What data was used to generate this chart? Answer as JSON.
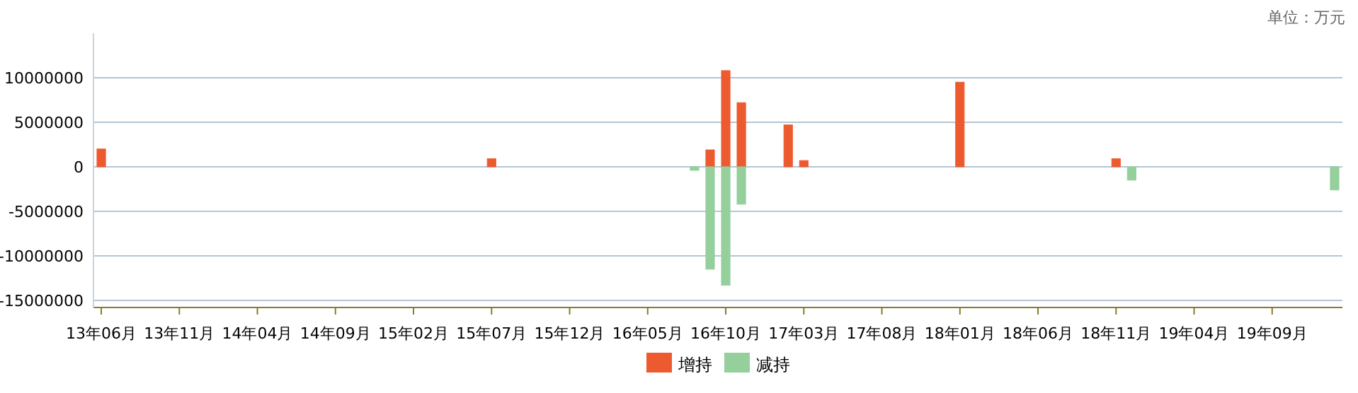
{
  "chart_data": {
    "type": "bar",
    "stacked": true,
    "grid": "y",
    "legend": "bottom",
    "annotations": [
      "单位：万元"
    ],
    "categories": [
      "13年06月",
      null,
      null,
      null,
      null,
      "13年11月",
      null,
      null,
      null,
      null,
      "14年04月",
      null,
      null,
      null,
      null,
      "14年09月",
      null,
      null,
      null,
      null,
      "15年02月",
      null,
      null,
      null,
      null,
      "15年07月",
      null,
      null,
      null,
      null,
      "15年12月",
      null,
      null,
      null,
      null,
      "16年05月",
      null,
      null,
      null,
      null,
      "16年10月",
      null,
      null,
      null,
      null,
      "17年03月",
      null,
      null,
      null,
      null,
      "17年08月",
      null,
      null,
      null,
      null,
      "18年01月",
      null,
      null,
      null,
      null,
      "18年06月",
      null,
      null,
      null,
      null,
      "18年11月",
      null,
      null,
      null,
      null,
      "19年04月",
      null,
      null,
      null,
      null,
      "19年09月",
      null,
      null,
      null,
      null
    ],
    "ylim": [
      -15800000,
      15000000
    ],
    "yticks": [
      -15000000,
      -10000000,
      -5000000,
      0,
      5000000,
      10000000
    ],
    "series": [
      {
        "name": "增持",
        "color": "#ee5a2f",
        "values": [
          2000000,
          null,
          null,
          null,
          null,
          null,
          null,
          null,
          null,
          null,
          null,
          null,
          null,
          null,
          null,
          null,
          null,
          null,
          null,
          null,
          null,
          null,
          null,
          null,
          null,
          900000,
          null,
          null,
          null,
          null,
          null,
          null,
          null,
          null,
          null,
          null,
          null,
          null,
          null,
          1900000,
          10800000,
          7200000,
          null,
          null,
          4700000,
          700000,
          null,
          null,
          null,
          null,
          null,
          null,
          null,
          null,
          null,
          9500000,
          null,
          null,
          null,
          null,
          null,
          null,
          null,
          null,
          null,
          900000,
          null,
          null,
          null,
          null,
          null,
          null,
          null,
          null,
          null,
          null,
          null,
          null,
          null,
          null
        ]
      },
      {
        "name": "减持",
        "color": "#95cf9c",
        "values": [
          null,
          null,
          null,
          null,
          null,
          null,
          null,
          null,
          null,
          null,
          null,
          null,
          null,
          null,
          null,
          null,
          null,
          null,
          null,
          null,
          null,
          null,
          null,
          null,
          null,
          null,
          null,
          null,
          null,
          null,
          null,
          null,
          null,
          null,
          null,
          null,
          null,
          null,
          -400000,
          -11500000,
          -13300000,
          -4200000,
          null,
          null,
          null,
          null,
          null,
          null,
          null,
          null,
          null,
          null,
          null,
          null,
          null,
          null,
          null,
          null,
          null,
          null,
          null,
          null,
          null,
          null,
          null,
          null,
          -1500000,
          null,
          null,
          null,
          null,
          null,
          null,
          null,
          null,
          null,
          null,
          null,
          null,
          -2600000
        ]
      }
    ]
  }
}
